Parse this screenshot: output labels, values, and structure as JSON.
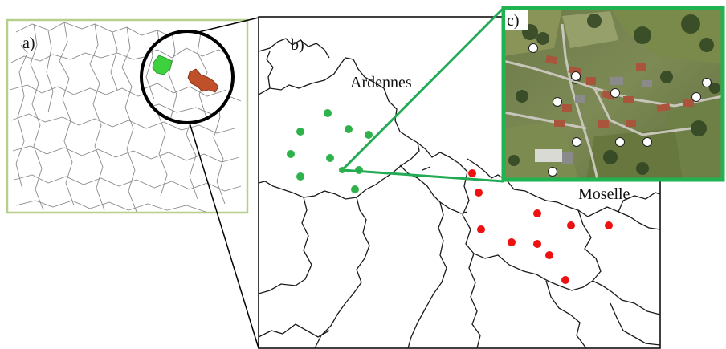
{
  "panels": {
    "a": {
      "label": "a)"
    },
    "b": {
      "label": "b)"
    },
    "c": {
      "label": "c)"
    }
  },
  "regions": {
    "ardennes": {
      "name": "Ardennes",
      "dot_color": "#2fb24c",
      "fill_color": "#3dd23d"
    },
    "moselle": {
      "name": "Moselle",
      "dot_color": "#ee1111",
      "fill_color": "#c0502a"
    }
  },
  "colors": {
    "france_frame": "#b6cf8c",
    "zoom_line": "#22aa55",
    "satellite_frame": "#1fb352",
    "boundary": "#1a1a1a"
  },
  "legend_counts": {
    "ardennes_sites": 10,
    "moselle_sites": 13,
    "village_plots": 11
  }
}
